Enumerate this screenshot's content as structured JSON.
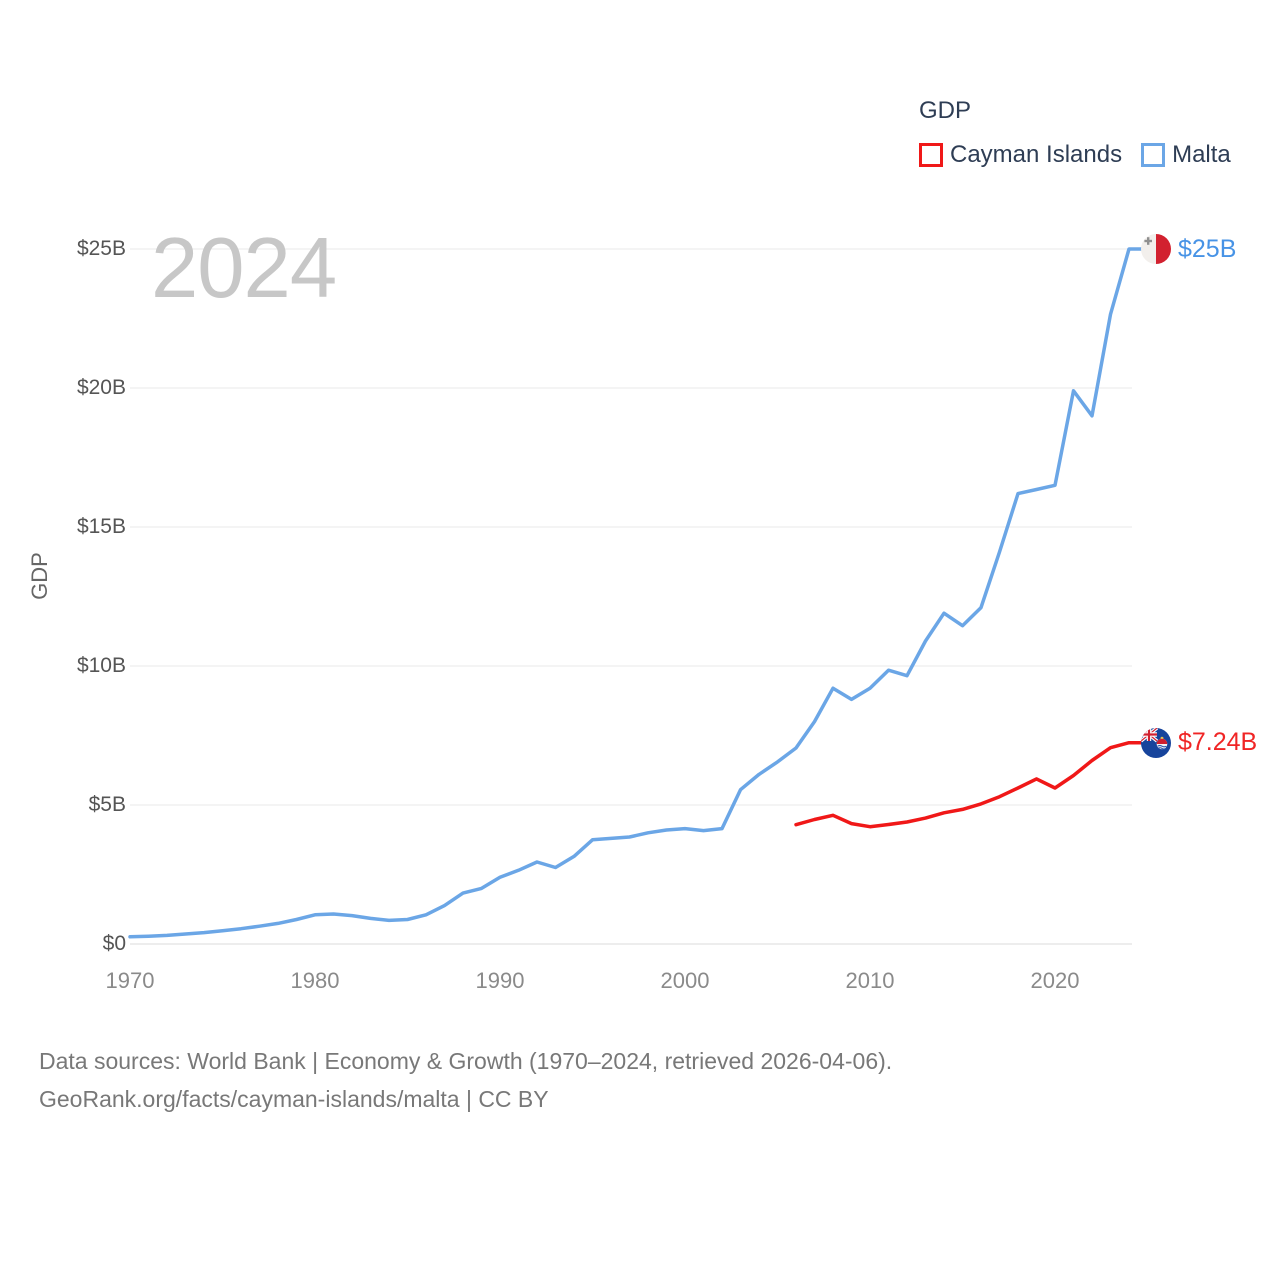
{
  "legend": {
    "title": "GDP",
    "items": [
      {
        "label": "Cayman Islands",
        "color": "#f01818"
      },
      {
        "label": "Malta",
        "color": "#6ba6e6"
      }
    ]
  },
  "watermark": "2024",
  "y_axis": {
    "title": "GDP"
  },
  "end_labels": {
    "malta": "$25B",
    "cayman_islands": "$7.24B"
  },
  "footer": {
    "line1": "Data sources: World Bank | Economy & Growth (1970–2024, retrieved 2026-04-06).",
    "line2": "GeoRank.org/facts/cayman-islands/malta | CC BY"
  },
  "chart_data": {
    "type": "line",
    "title": "GDP",
    "xlim": [
      1970,
      2024
    ],
    "ylim": [
      0,
      25
    ],
    "grid": "horizontal",
    "legend_position": "top-right",
    "ylabel": "GDP",
    "y_ticks": [
      {
        "v": 0,
        "label": "$0"
      },
      {
        "v": 5,
        "label": "$5B"
      },
      {
        "v": 10,
        "label": "$10B"
      },
      {
        "v": 15,
        "label": "$15B"
      },
      {
        "v": 20,
        "label": "$20B"
      },
      {
        "v": 25,
        "label": "$25B"
      }
    ],
    "x_ticks": [
      1970,
      1980,
      1990,
      2000,
      2010,
      2020
    ],
    "series": [
      {
        "name": "Malta",
        "color": "#6ba6e6",
        "label_color": "#4793e6",
        "first_year": 1970,
        "end_label": "$25B",
        "values": [
          0.26,
          0.28,
          0.31,
          0.36,
          0.41,
          0.48,
          0.55,
          0.64,
          0.74,
          0.88,
          1.05,
          1.08,
          1.02,
          0.92,
          0.85,
          0.88,
          1.05,
          1.38,
          1.83,
          2.0,
          2.4,
          2.65,
          2.95,
          2.75,
          3.15,
          3.75,
          3.8,
          3.85,
          4.0,
          4.1,
          4.15,
          4.08,
          4.15,
          5.55,
          6.1,
          6.55,
          7.05,
          8.0,
          9.2,
          8.8,
          9.2,
          9.85,
          9.65,
          10.9,
          11.9,
          11.45,
          12.1,
          14.1,
          16.2,
          16.35,
          16.5,
          19.9,
          19.0,
          22.65,
          25.0
        ]
      },
      {
        "name": "Cayman Islands",
        "color": "#f01818",
        "label_color": "#f02525",
        "first_year": 2006,
        "end_label": "$7.24B",
        "values": [
          4.29,
          4.48,
          4.63,
          4.33,
          4.22,
          4.3,
          4.39,
          4.53,
          4.72,
          4.84,
          5.04,
          5.3,
          5.61,
          5.94,
          5.61,
          6.06,
          6.6,
          7.06,
          7.24
        ]
      }
    ]
  }
}
